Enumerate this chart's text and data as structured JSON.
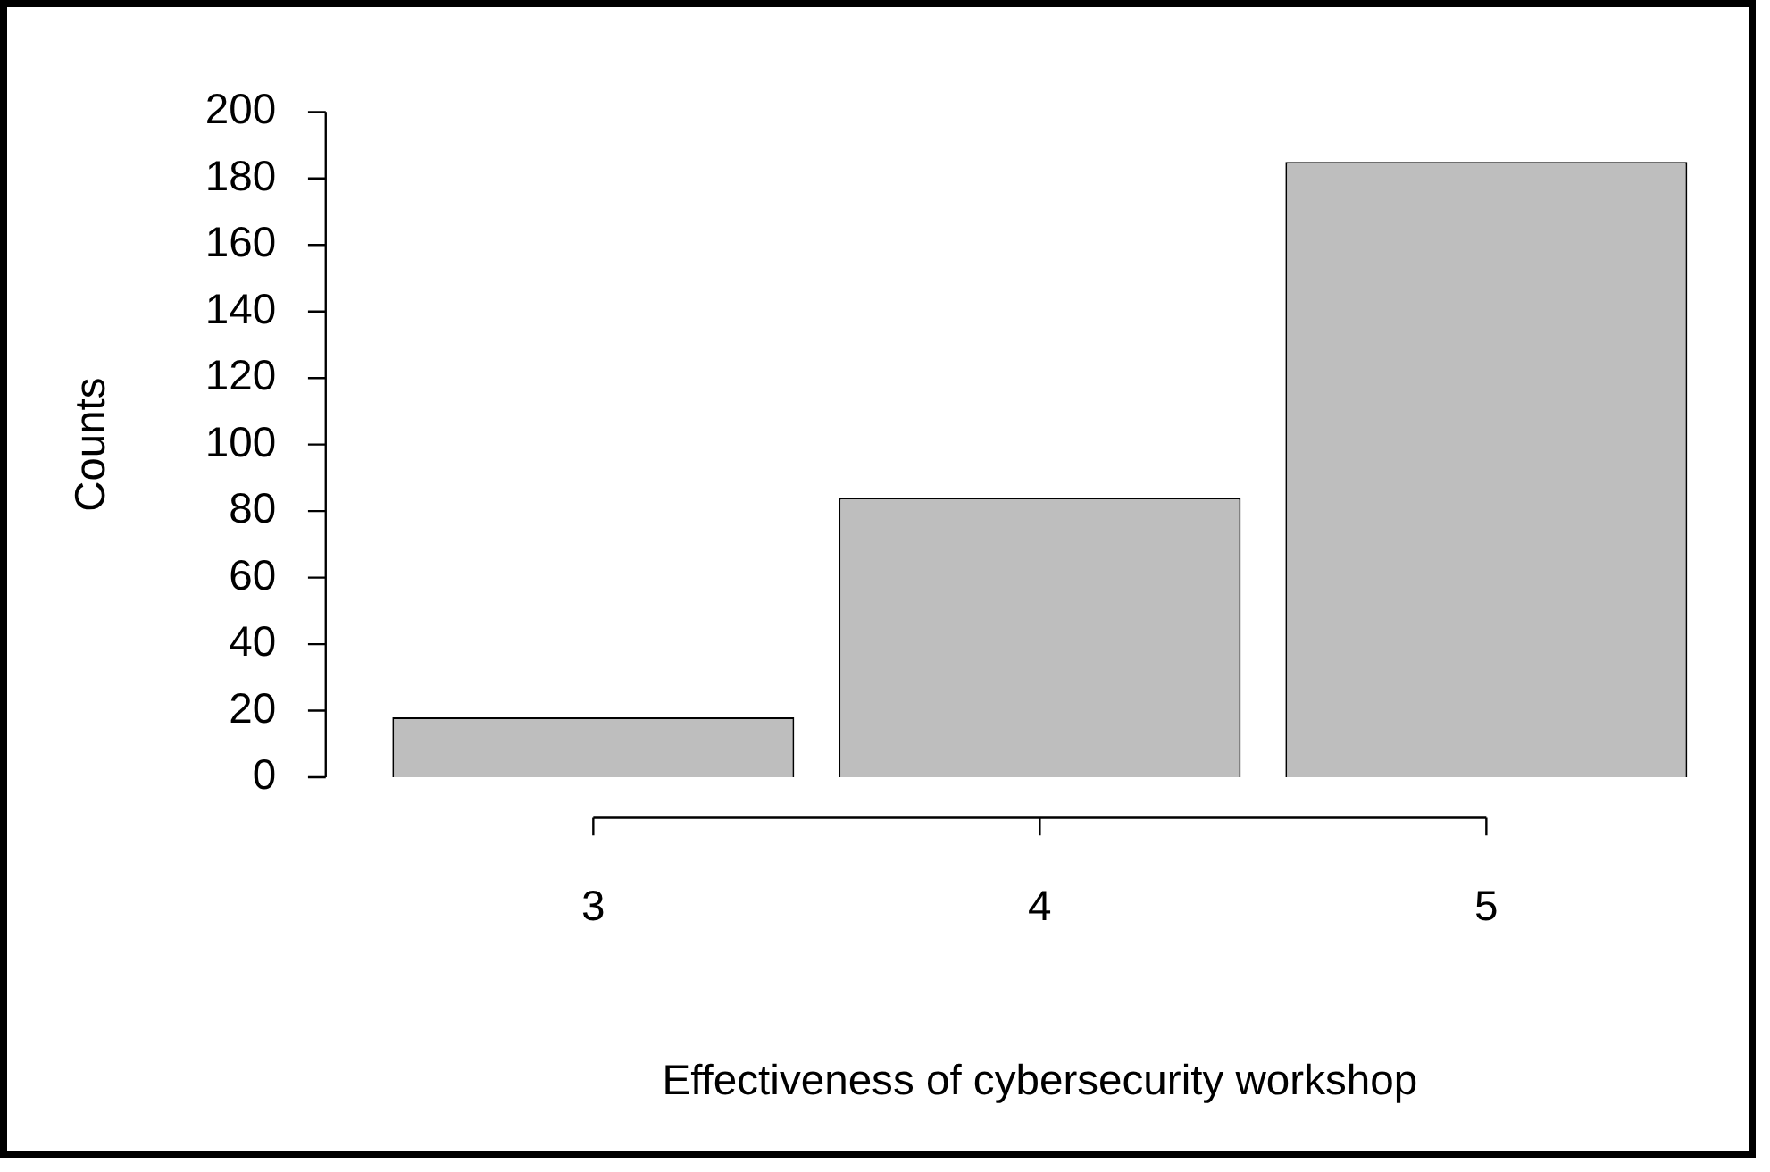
{
  "chart_data": {
    "type": "bar",
    "xlabel": "Effectiveness of cybersecurity workshop",
    "ylabel": "Counts",
    "categories": [
      "3",
      "4",
      "5"
    ],
    "values": [
      18,
      84,
      185
    ],
    "color": "#bebebe",
    "ylim": [
      0,
      200
    ],
    "yticks": [
      0,
      20,
      40,
      60,
      80,
      100,
      120,
      140,
      160,
      180,
      200
    ]
  }
}
